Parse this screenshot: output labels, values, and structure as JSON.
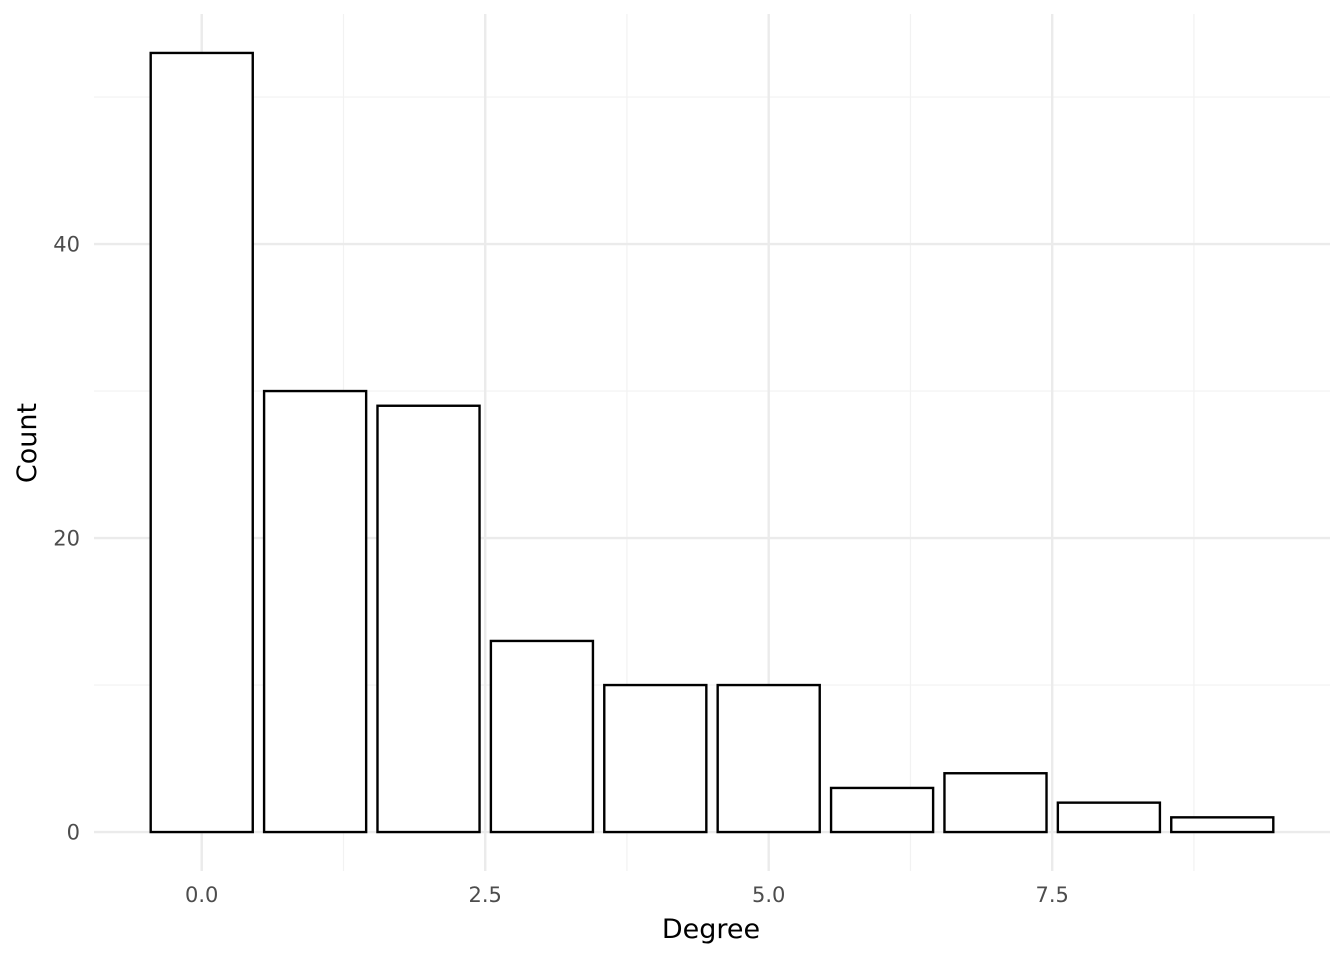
{
  "chart_data": {
    "type": "bar",
    "title": "",
    "xlabel": "Degree",
    "ylabel": "Count",
    "x": [
      0,
      1,
      2,
      3,
      4,
      5,
      6,
      7,
      8,
      9
    ],
    "values": [
      53,
      30,
      29,
      13,
      10,
      10,
      3,
      4,
      2,
      1
    ],
    "xlim": [
      -0.95,
      9.95
    ],
    "ylim": [
      -2.65,
      55.65
    ],
    "x_ticks": [
      0,
      2.5,
      5,
      7.5
    ],
    "x_tick_labels": [
      "0.0",
      "2.5",
      "5.0",
      "7.5"
    ],
    "y_ticks": [
      0,
      20,
      40
    ],
    "y_tick_labels": [
      "0",
      "20",
      "40"
    ],
    "x_minor_ticks": [
      1.25,
      3.75,
      6.25,
      8.75
    ],
    "y_minor_ticks": [
      10,
      30,
      50
    ],
    "grid": true,
    "legend": "none",
    "colors": {
      "bar_fill": "#ffffff",
      "bar_outline": "#000000",
      "grid_major": "#ebebeb",
      "grid_minor": "#f2f2f2",
      "tick_text": "#4d4d4d",
      "axis_title": "#000000",
      "background": "#ffffff"
    }
  }
}
